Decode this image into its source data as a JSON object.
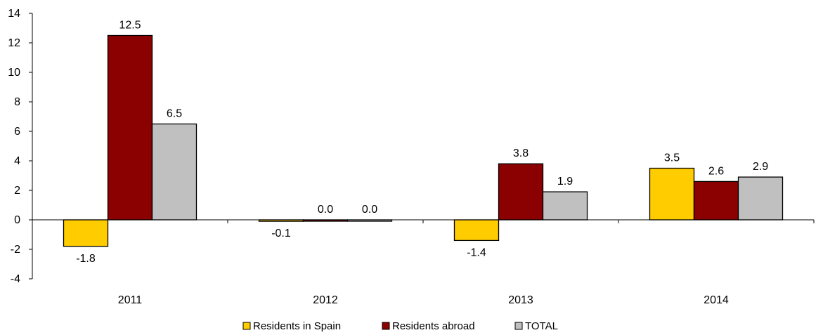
{
  "chart_data": {
    "type": "bar",
    "categories": [
      "2011",
      "2012",
      "2013",
      "2014"
    ],
    "series": [
      {
        "name": "Residents in Spain",
        "color": "#FFCC00",
        "values": [
          -1.8,
          -0.1,
          -1.4,
          3.5
        ],
        "labels": [
          "-1.8",
          "-0.1",
          "-1.4",
          "3.5"
        ]
      },
      {
        "name": "Residents abroad",
        "color": "#8B0000",
        "values": [
          12.5,
          0.0,
          3.8,
          2.6
        ],
        "labels": [
          "12.5",
          "0.0",
          "3.8",
          "2.6"
        ]
      },
      {
        "name": "TOTAL",
        "color": "#C0C0C0",
        "values": [
          6.5,
          0.0,
          1.9,
          2.9
        ],
        "labels": [
          "6.5",
          "0.0",
          "1.9",
          "2.9"
        ]
      }
    ],
    "ylim": [
      -4,
      14
    ],
    "yticks": [
      "-4",
      "-2",
      "0",
      "2",
      "4",
      "6",
      "8",
      "10",
      "12",
      "14"
    ],
    "grid": false,
    "legend_position": "bottom",
    "title": "",
    "xlabel": "",
    "ylabel": ""
  }
}
